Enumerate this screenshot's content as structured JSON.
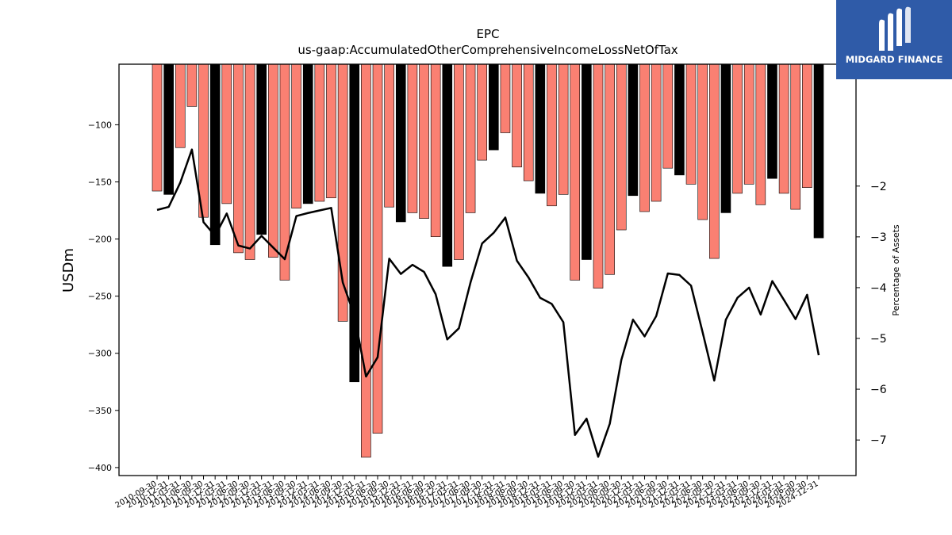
{
  "chart_data": {
    "type": "bar+line",
    "title": "EPC",
    "subtitle": "us-gaap:AccumulatedOtherComprehensiveIncomeLossNetOfTax",
    "ylabel": "USDm",
    "y2label": "Percentage of Assets",
    "ylim": [
      -407,
      -47
    ],
    "y2lim": [
      -7.7,
      0.4
    ],
    "yticks": [
      -100,
      -150,
      -200,
      -250,
      -300,
      -350,
      -400
    ],
    "y2ticks": [
      -2,
      -3,
      -4,
      -5,
      -6,
      -7
    ],
    "x": [
      "2010-09-30",
      "2010-12-31",
      "2011-03-31",
      "2011-06-30",
      "2011-09-30",
      "2011-12-31",
      "2012-03-31",
      "2012-06-30",
      "2012-09-30",
      "2012-12-31",
      "2013-03-31",
      "2013-06-30",
      "2013-09-30",
      "2013-12-31",
      "2014-03-31",
      "2014-06-30",
      "2014-09-30",
      "2014-12-31",
      "2015-03-31",
      "2015-06-30",
      "2015-09-30",
      "2015-12-31",
      "2016-03-31",
      "2016-06-30",
      "2016-09-30",
      "2016-12-31",
      "2017-03-31",
      "2017-06-30",
      "2017-09-30",
      "2017-12-31",
      "2018-03-31",
      "2018-06-30",
      "2018-09-30",
      "2018-12-31",
      "2019-03-31",
      "2019-06-30",
      "2019-09-30",
      "2019-12-31",
      "2020-03-31",
      "2020-06-30",
      "2020-09-30",
      "2020-12-31",
      "2021-03-31",
      "2021-06-30",
      "2021-09-30",
      "2021-12-31",
      "2022-03-31",
      "2022-06-30",
      "2022-09-30",
      "2022-12-31",
      "2023-03-31",
      "2023-06-30",
      "2023-09-30",
      "2023-12-31",
      "2024-03-31",
      "2024-06-30",
      "2024-09-30",
      "2024-12-31"
    ],
    "series": [
      {
        "name": "AccumulatedOtherComprehensiveIncomeLossNetOfTax",
        "kind": "bar",
        "values": [
          -158,
          -161,
          -120,
          -84,
          -181,
          -205,
          -169,
          -212,
          -218,
          -196,
          -216,
          -236,
          -173,
          -169,
          -167,
          -164,
          -272,
          -325,
          -391,
          -370,
          -172,
          -185,
          -177,
          -182,
          -198,
          -224,
          -218,
          -177,
          -131,
          -122,
          -107,
          -137,
          -149,
          -160,
          -171,
          -161,
          -236,
          -218,
          -243,
          -231,
          -192,
          -162,
          -176,
          -167,
          -138,
          -144,
          -152,
          -183,
          -217,
          -177,
          -160,
          -152,
          -170,
          -147,
          -160,
          -174,
          -155,
          -199
        ],
        "year_end_color": "#000000",
        "color": "#fa8072"
      },
      {
        "name": "Percentage of Assets",
        "kind": "line",
        "axis": "right",
        "color": "#000000",
        "values": [
          -2.47,
          -2.41,
          -1.93,
          -1.28,
          -2.71,
          -2.98,
          -2.54,
          -3.17,
          -3.23,
          -2.98,
          -3.21,
          -3.44,
          -2.59,
          -2.53,
          -2.48,
          -2.43,
          -3.9,
          -4.55,
          -5.75,
          -5.37,
          -3.43,
          -3.73,
          -3.55,
          -3.69,
          -4.13,
          -5.02,
          -4.8,
          -3.9,
          -3.13,
          -2.92,
          -2.62,
          -3.47,
          -3.8,
          -4.2,
          -4.32,
          -4.68,
          -6.9,
          -6.58,
          -7.33,
          -6.68,
          -5.42,
          -4.63,
          -4.96,
          -4.56,
          -3.72,
          -3.75,
          -3.96,
          -4.88,
          -5.83,
          -4.63,
          -4.2,
          -4.0,
          -4.53,
          -3.87,
          -4.24,
          -4.62,
          -4.14,
          -5.33
        ]
      }
    ],
    "legend": "none",
    "grid": false
  },
  "logo": {
    "text": "MIDGARD FINANCE"
  }
}
